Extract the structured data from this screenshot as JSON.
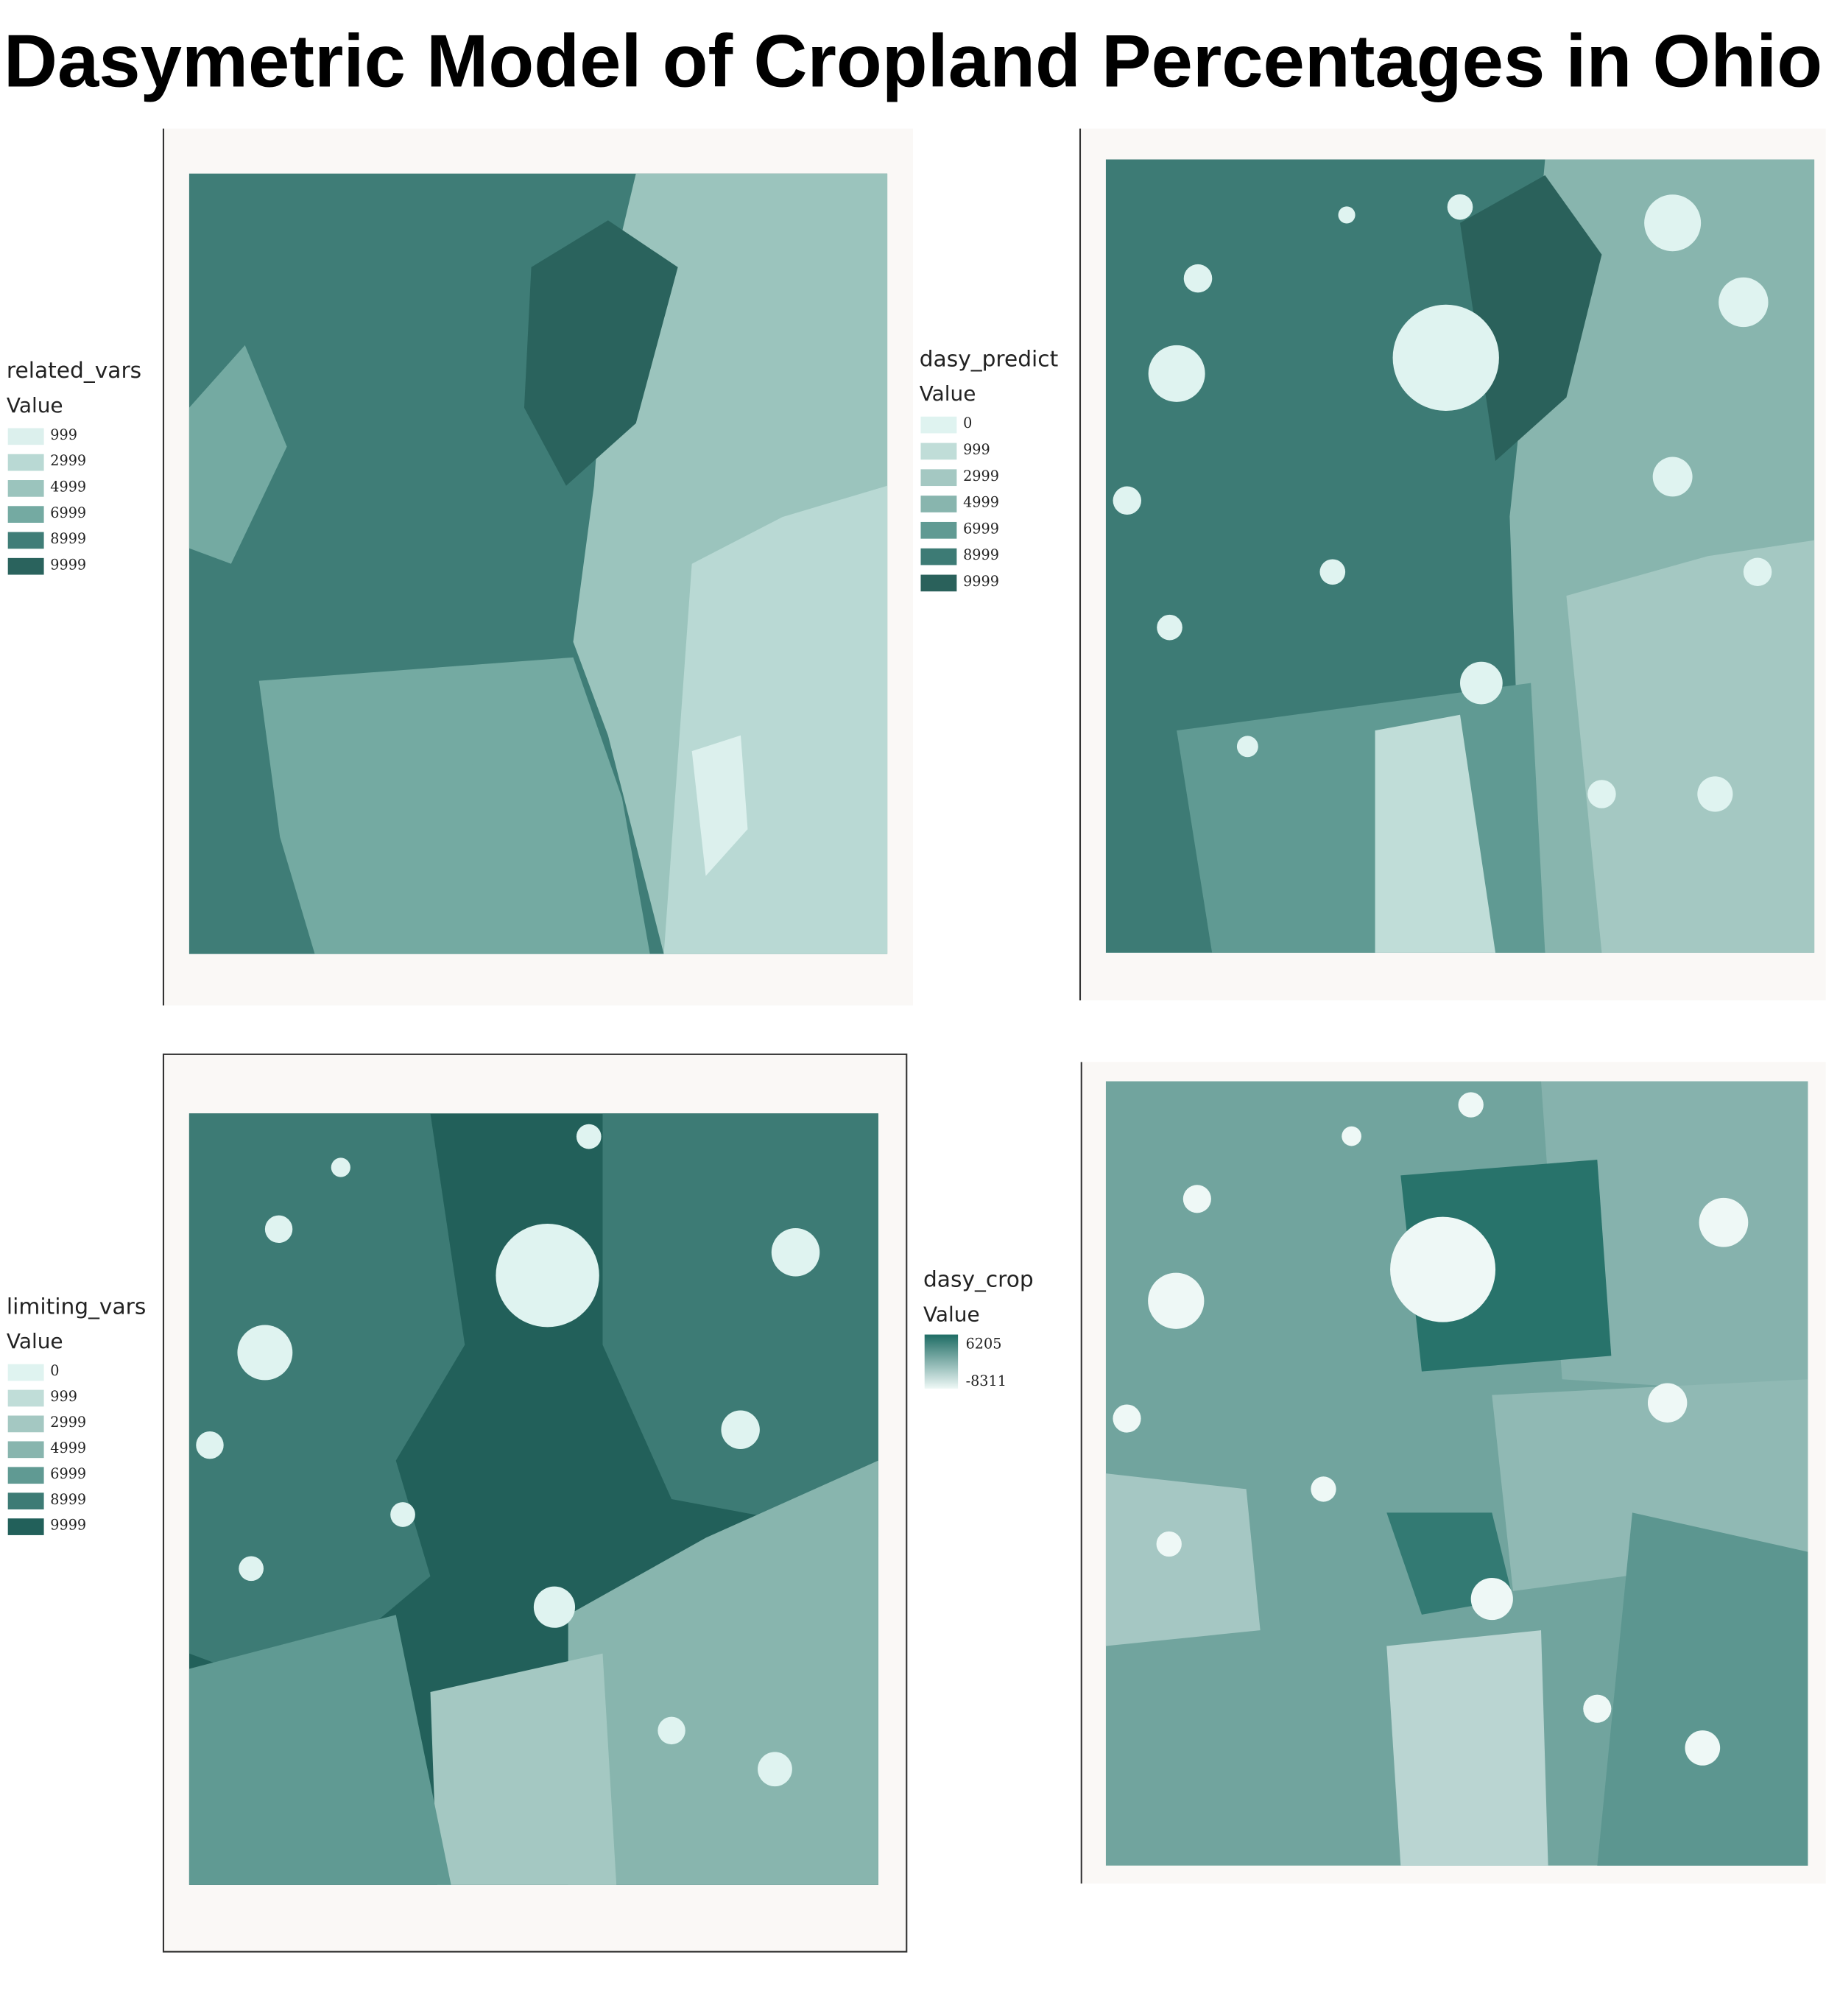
{
  "title": "Dasymetric Model of Cropland Percentages in Ohio",
  "panels": [
    {
      "legend_title": "related_vars",
      "value_label": "Value",
      "entries": [
        999,
        2999,
        4999,
        6999,
        8999,
        9999
      ],
      "colors": [
        "#dcf0ed",
        "#b9d9d4",
        "#9bc4bd",
        "#74aaa2",
        "#3f7d77",
        "#2a635d"
      ]
    },
    {
      "legend_title": "dasy_predict",
      "value_label": "Value",
      "entries": [
        0,
        999,
        2999,
        4999,
        6999,
        8999,
        9999
      ],
      "colors": [
        "#dff3f0",
        "#c0ddd8",
        "#a4c8c2",
        "#88b5ae",
        "#609a93",
        "#3d7b75",
        "#2a615b"
      ]
    },
    {
      "legend_title": "limiting_vars",
      "value_label": "Value",
      "entries": [
        0,
        999,
        2999,
        4999,
        6999,
        8999,
        9999
      ],
      "colors": [
        "#dff3f0",
        "#c0ddd8",
        "#a4c8c2",
        "#88b5ae",
        "#609a93",
        "#3d7b75",
        "#22605a"
      ]
    },
    {
      "legend_title": "dasy_crop",
      "value_label": "Value",
      "gradient": {
        "max": 6205,
        "min": -8311,
        "colors": [
          "#1e6c64",
          "#eef8f6"
        ]
      }
    }
  ]
}
